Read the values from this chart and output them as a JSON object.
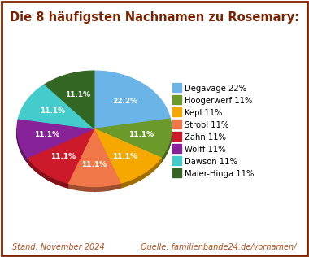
{
  "title": "Die 8 häufigsten Nachnamen zu Rosemary:",
  "labels": [
    "Degavage",
    "Hoogerwerf",
    "Kepl",
    "Strobl",
    "Zahn",
    "Wolff",
    "Dawson",
    "Maier-Hinga"
  ],
  "legend_labels": [
    "Degavage 22%",
    "Hoogerwerf 11%",
    "Kepl 11%",
    "Strobl 11%",
    "Zahn 11%",
    "Wolff 11%",
    "Dawson 11%",
    "Maier-Hinga 11%"
  ],
  "values": [
    22.2,
    11.1,
    11.1,
    11.1,
    11.1,
    11.1,
    11.1,
    11.1
  ],
  "pct_labels": [
    "22.2%",
    "11.1%",
    "11.1%",
    "11.1%",
    "11.1%",
    "11.1%",
    "11.1%",
    "11.1%"
  ],
  "colors": [
    "#6ab4e8",
    "#6b9a2a",
    "#f5a800",
    "#f07848",
    "#cc1a2a",
    "#882299",
    "#44cccc",
    "#336622"
  ],
  "startangle": 90,
  "footer_left": "Stand: November 2024",
  "footer_right": "Quelle: familienbande24.de/vornamen/",
  "title_color": "#7b2200",
  "footer_color": "#b05020",
  "border_color": "#7b2200",
  "background_color": "#ffffff"
}
